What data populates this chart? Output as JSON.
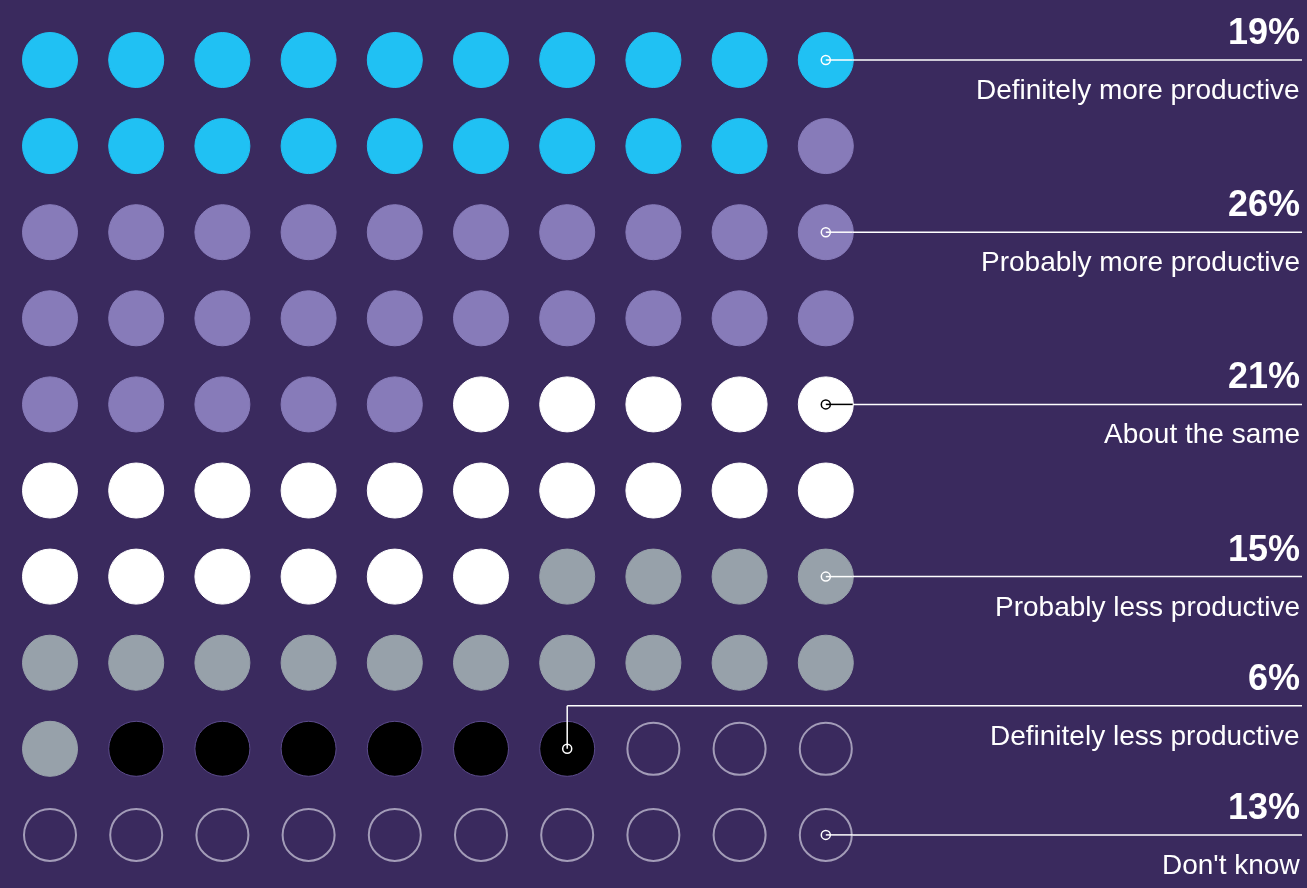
{
  "chart_data": {
    "type": "other",
    "categories": [
      "Definitely more productive",
      "Probably more productive",
      "About the same",
      "Probably less productive",
      "Definitely less productive",
      "Don't know"
    ],
    "values": [
      19,
      26,
      21,
      15,
      6,
      13
    ],
    "value_labels": [
      "19%",
      "26%",
      "21%",
      "15%",
      "6%",
      "13%"
    ],
    "colors": [
      "#20c1f3",
      "#877bb9",
      "#ffffff",
      "#97a1aa",
      "#000000",
      "#a39cb8"
    ]
  }
}
